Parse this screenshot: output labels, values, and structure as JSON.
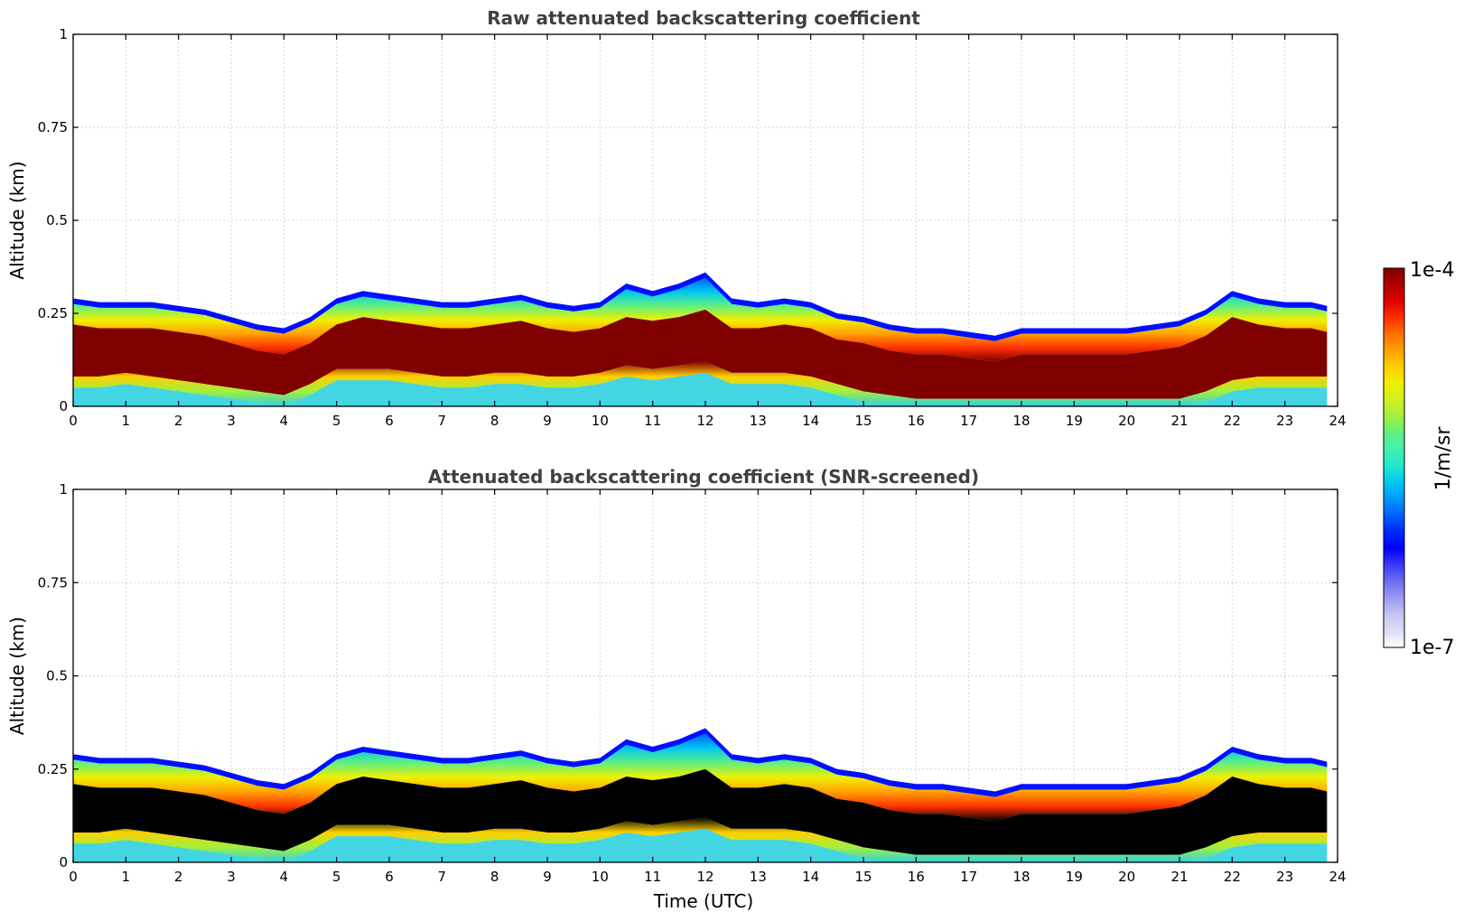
{
  "figure": {
    "colorbar": {
      "max_label": "1e-4",
      "min_label": "1e-7",
      "unit_label": "1/m/sr",
      "colors": [
        "#ffffff",
        "#dcdcf5",
        "#c4c4f5",
        "#9b9bf2",
        "#6d6df0",
        "#3b3bf5",
        "#0000ff",
        "#0028ff",
        "#0060ff",
        "#0098ff",
        "#00c8f0",
        "#22e8d0",
        "#40f0b0",
        "#60f080",
        "#a0f040",
        "#d0f020",
        "#f0f000",
        "#ffd000",
        "#ffa000",
        "#ff7000",
        "#ff3000",
        "#e00000",
        "#b00000",
        "#800000"
      ]
    }
  },
  "chart_data": [
    {
      "type": "heatmap",
      "title": "Raw attenuated backscattering coefficient",
      "xlabel": "",
      "ylabel": "Altitude (km)",
      "xlim": [
        0,
        24
      ],
      "ylim": [
        0,
        1
      ],
      "x_ticks": [
        "0",
        "1",
        "2",
        "3",
        "4",
        "5",
        "6",
        "7",
        "8",
        "9",
        "10",
        "11",
        "12",
        "13",
        "14",
        "15",
        "16",
        "17",
        "18",
        "19",
        "20",
        "21",
        "22",
        "23",
        "24"
      ],
      "y_ticks": [
        "0",
        "0.25",
        "0.5",
        "0.75",
        "1"
      ],
      "grid": true,
      "saturated_color": "#800000",
      "time_utc": [
        0,
        0.5,
        1,
        1.5,
        2,
        2.5,
        3,
        3.5,
        4,
        4.5,
        5,
        5.5,
        6,
        6.5,
        7,
        7.5,
        8,
        8.5,
        9,
        9.5,
        10,
        10.5,
        11,
        11.5,
        12,
        12.5,
        13,
        13.5,
        14,
        14.5,
        15,
        15.5,
        16,
        16.5,
        17,
        17.5,
        18,
        18.5,
        19,
        19.5,
        20,
        20.5,
        21,
        21.5,
        22,
        22.5,
        23,
        23.5,
        23.8
      ],
      "layer_top_km": [
        0.29,
        0.28,
        0.28,
        0.28,
        0.27,
        0.26,
        0.24,
        0.22,
        0.21,
        0.24,
        0.29,
        0.31,
        0.3,
        0.29,
        0.28,
        0.28,
        0.29,
        0.3,
        0.28,
        0.27,
        0.28,
        0.33,
        0.31,
        0.33,
        0.36,
        0.29,
        0.28,
        0.29,
        0.28,
        0.25,
        0.24,
        0.22,
        0.21,
        0.21,
        0.2,
        0.19,
        0.21,
        0.21,
        0.21,
        0.21,
        0.21,
        0.22,
        0.23,
        0.26,
        0.31,
        0.29,
        0.28,
        0.28,
        0.27
      ],
      "saturated_top_km": [
        0.22,
        0.21,
        0.21,
        0.21,
        0.2,
        0.19,
        0.17,
        0.15,
        0.14,
        0.17,
        0.22,
        0.24,
        0.23,
        0.22,
        0.21,
        0.21,
        0.22,
        0.23,
        0.21,
        0.2,
        0.21,
        0.24,
        0.23,
        0.24,
        0.26,
        0.21,
        0.21,
        0.22,
        0.21,
        0.18,
        0.17,
        0.15,
        0.14,
        0.14,
        0.13,
        0.12,
        0.14,
        0.14,
        0.14,
        0.14,
        0.14,
        0.15,
        0.16,
        0.19,
        0.24,
        0.22,
        0.21,
        0.21,
        0.2
      ],
      "saturated_base_km": [
        0.08,
        0.08,
        0.09,
        0.08,
        0.07,
        0.06,
        0.05,
        0.04,
        0.03,
        0.06,
        0.1,
        0.1,
        0.1,
        0.09,
        0.08,
        0.08,
        0.09,
        0.09,
        0.08,
        0.08,
        0.09,
        0.11,
        0.1,
        0.11,
        0.12,
        0.09,
        0.09,
        0.09,
        0.08,
        0.06,
        0.04,
        0.03,
        0.02,
        0.02,
        0.02,
        0.02,
        0.02,
        0.02,
        0.02,
        0.02,
        0.02,
        0.02,
        0.02,
        0.04,
        0.07,
        0.08,
        0.08,
        0.08,
        0.08
      ]
    },
    {
      "type": "heatmap",
      "title": "Attenuated backscattering coefficient (SNR-screened)",
      "xlabel": "Time (UTC)",
      "ylabel": "Altitude (km)",
      "xlim": [
        0,
        24
      ],
      "ylim": [
        0,
        1
      ],
      "x_ticks": [
        "0",
        "1",
        "2",
        "3",
        "4",
        "5",
        "6",
        "7",
        "8",
        "9",
        "10",
        "11",
        "12",
        "13",
        "14",
        "15",
        "16",
        "17",
        "18",
        "19",
        "20",
        "21",
        "22",
        "23",
        "24"
      ],
      "y_ticks": [
        "0",
        "0.25",
        "0.5",
        "0.75",
        "1"
      ],
      "grid": true,
      "saturated_color": "#000000",
      "time_utc": [
        0,
        0.5,
        1,
        1.5,
        2,
        2.5,
        3,
        3.5,
        4,
        4.5,
        5,
        5.5,
        6,
        6.5,
        7,
        7.5,
        8,
        8.5,
        9,
        9.5,
        10,
        10.5,
        11,
        11.5,
        12,
        12.5,
        13,
        13.5,
        14,
        14.5,
        15,
        15.5,
        16,
        16.5,
        17,
        17.5,
        18,
        18.5,
        19,
        19.5,
        20,
        20.5,
        21,
        21.5,
        22,
        22.5,
        23,
        23.5,
        23.8
      ],
      "layer_top_km": [
        0.29,
        0.28,
        0.28,
        0.28,
        0.27,
        0.26,
        0.24,
        0.22,
        0.21,
        0.24,
        0.29,
        0.31,
        0.3,
        0.29,
        0.28,
        0.28,
        0.29,
        0.3,
        0.28,
        0.27,
        0.28,
        0.33,
        0.31,
        0.33,
        0.36,
        0.29,
        0.28,
        0.29,
        0.28,
        0.25,
        0.24,
        0.22,
        0.21,
        0.21,
        0.2,
        0.19,
        0.21,
        0.21,
        0.21,
        0.21,
        0.21,
        0.22,
        0.23,
        0.26,
        0.31,
        0.29,
        0.28,
        0.28,
        0.27
      ],
      "saturated_top_km": [
        0.21,
        0.2,
        0.2,
        0.2,
        0.19,
        0.18,
        0.16,
        0.14,
        0.13,
        0.16,
        0.21,
        0.23,
        0.22,
        0.21,
        0.2,
        0.2,
        0.21,
        0.22,
        0.2,
        0.19,
        0.2,
        0.23,
        0.22,
        0.23,
        0.25,
        0.2,
        0.2,
        0.21,
        0.2,
        0.17,
        0.16,
        0.14,
        0.13,
        0.13,
        0.12,
        0.11,
        0.13,
        0.13,
        0.13,
        0.13,
        0.13,
        0.14,
        0.15,
        0.18,
        0.23,
        0.21,
        0.2,
        0.2,
        0.19
      ],
      "saturated_base_km": [
        0.08,
        0.08,
        0.09,
        0.08,
        0.07,
        0.06,
        0.05,
        0.04,
        0.03,
        0.06,
        0.1,
        0.1,
        0.1,
        0.09,
        0.08,
        0.08,
        0.09,
        0.09,
        0.08,
        0.08,
        0.09,
        0.11,
        0.1,
        0.11,
        0.12,
        0.09,
        0.09,
        0.09,
        0.08,
        0.06,
        0.04,
        0.03,
        0.02,
        0.02,
        0.02,
        0.02,
        0.02,
        0.02,
        0.02,
        0.02,
        0.02,
        0.02,
        0.02,
        0.04,
        0.07,
        0.08,
        0.08,
        0.08,
        0.08
      ]
    }
  ]
}
